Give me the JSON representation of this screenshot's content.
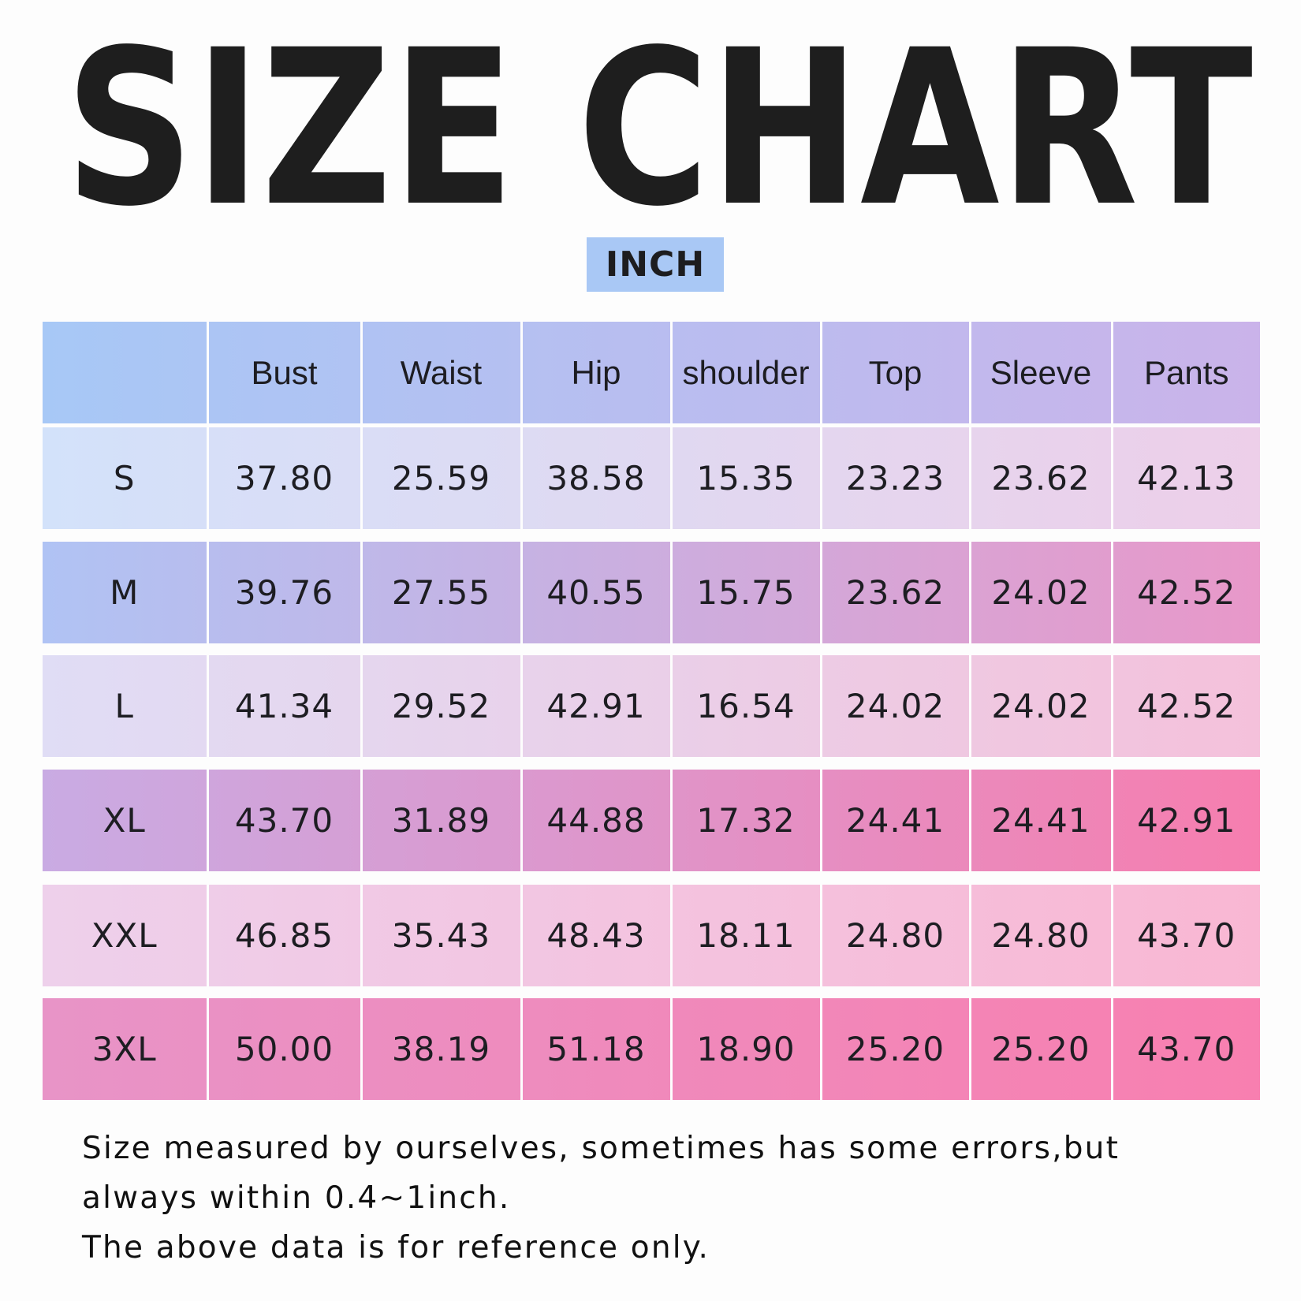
{
  "title": "SIZE CHART",
  "unit": "INCH",
  "table": {
    "header": [
      "Bust",
      "Waist",
      "Hip",
      "shoulder",
      "Top",
      "Sleeve",
      "Pants"
    ],
    "rows": [
      [
        "S",
        "37.80",
        "25.59",
        "38.58",
        "15.35",
        "23.23",
        "23.62",
        "42.13"
      ],
      [
        "M",
        "39.76",
        "27.55",
        "40.55",
        "15.75",
        "23.62",
        "24.02",
        "42.52"
      ],
      [
        "L",
        "41.34",
        "29.52",
        "42.91",
        "16.54",
        "24.02",
        "24.02",
        "42.52"
      ],
      [
        "XL",
        "43.70",
        "31.89",
        "44.88",
        "17.32",
        "24.41",
        "24.41",
        "42.91"
      ],
      [
        "XXL",
        "46.85",
        "35.43",
        "48.43",
        "18.11",
        "24.80",
        "24.80",
        "43.70"
      ],
      [
        "3XL",
        "50.00",
        "38.19",
        "51.18",
        "18.90",
        "25.20",
        "25.20",
        "43.70"
      ]
    ]
  },
  "notes": [
    "Size measured by ourselves, sometimes has some errors,but always within 0.4~1inch.",
    "The above data is for reference only."
  ]
}
